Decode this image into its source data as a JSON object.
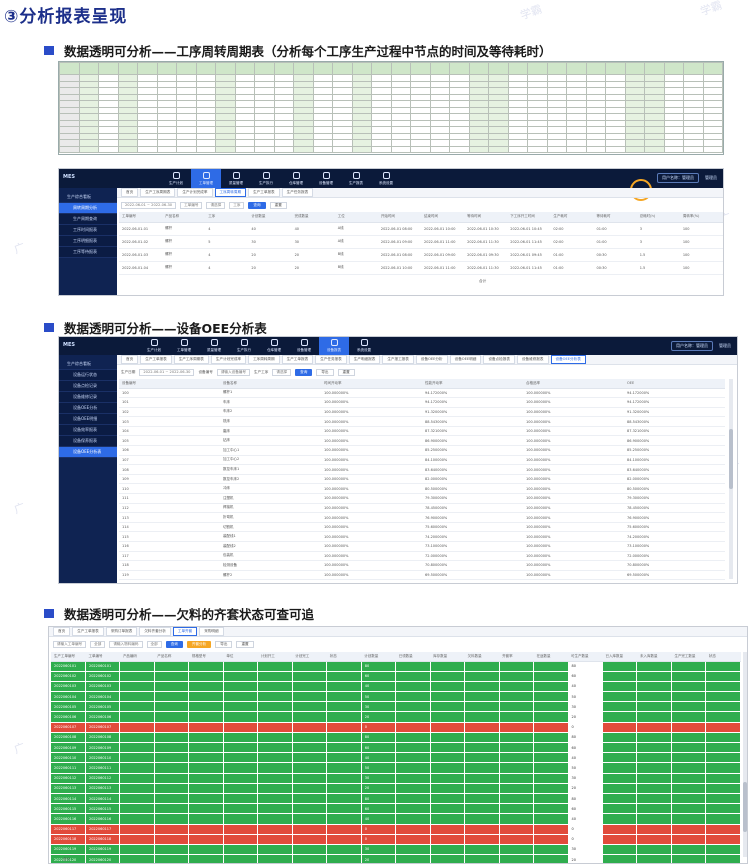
{
  "page": {
    "title": "③分析报表呈现"
  },
  "sections": {
    "s1": "数据透明可分析——工序周转周期表（分析每个工序生产过程中节点的时间及等待耗时）",
    "s2": "数据透明可分析——设备OEE分析表",
    "s3": "数据透明可分析——欠料的齐套状态可查可追"
  },
  "watermarks": [
    "学霸",
    "学霸",
    "广",
    "广",
    "广",
    "广",
    "广",
    "广",
    "广"
  ],
  "colors": {
    "title_blue": "#1c2f8a",
    "section_square": "#2a4cc8",
    "topbar": "#0b1a3a",
    "sidebar": "#0f2352",
    "accent": "#2e6be6",
    "kit_green": "#2fad4e",
    "kit_red": "#e14b3b",
    "highlight": "#f5a623"
  },
  "excel": {
    "rows": 13,
    "cols": 34
  },
  "app1": {
    "nav": [
      "生产计划",
      "工单管理",
      "质量管理",
      "生产执行",
      "仓库管理",
      "设备管理",
      "生产报表",
      "系统设置"
    ],
    "nav_icons": [
      "calendar-icon",
      "list-icon",
      "shield-icon",
      "play-icon",
      "box-icon",
      "gear-icon",
      "chart-icon",
      "settings-icon"
    ],
    "active_nav": 1,
    "sidebar": [
      "生产综合看板",
      "周转周期分析",
      "生产周期查询",
      "工序时间报表",
      "工序明细报表",
      "工序等待报表"
    ],
    "sidebar_active": 1,
    "tabs": [
      "首页",
      "生产工序周期表",
      "生产计划完成率",
      "工序周转周期",
      "生产工单报表",
      "生产任务报表"
    ],
    "active_tab": 3,
    "filter_labels": [
      "2022-06-01 ~ 2022-06-30",
      "工单编号",
      "请选择",
      "工序"
    ],
    "search_label": "查询",
    "reset_label": "重置",
    "columns": [
      "工单编号",
      "产品名称",
      "工序",
      "计划数量",
      "完成数量",
      "工位",
      "开始时间",
      "结束时间",
      "等待时间",
      "下工序开工时间",
      "生产耗时",
      "等待耗时",
      "总耗时(h)",
      "周转率(%)"
    ],
    "rows": [
      [
        "2022-06-01-01",
        "螺杆",
        "4",
        "40",
        "40",
        "A线",
        "2022-06-01 08:00",
        "2022-06-01 10:00",
        "2022-06-01 10:30",
        "2022-06-01 10:45",
        "02:00",
        "01:00",
        "3",
        "100"
      ],
      [
        "2022-06-01-02",
        "螺杆",
        "5",
        "30",
        "30",
        "A线",
        "2022-06-01 09:00",
        "2022-06-01 11:00",
        "2022-06-01 11:30",
        "2022-06-01 11:45",
        "02:00",
        "01:00",
        "3",
        "100"
      ],
      [
        "2022-06-01-03",
        "螺杆",
        "4",
        "20",
        "20",
        "B线",
        "2022-06-01 08:00",
        "2022-06-01 09:00",
        "2022-06-01 09:30",
        "2022-06-01 09:45",
        "01:00",
        "00:30",
        "1.5",
        "100"
      ],
      [
        "2022-06-01-04",
        "螺杆",
        "4",
        "20",
        "20",
        "B线",
        "2022-06-01 10:00",
        "2022-06-01 11:00",
        "2022-06-01 11:30",
        "2022-06-01 11:45",
        "01:00",
        "00:30",
        "1.5",
        "100"
      ]
    ],
    "total_label": "合计",
    "user": "用户名称：管理员",
    "avatar": "管理员"
  },
  "app2": {
    "nav": [
      "生产计划",
      "工单管理",
      "质量管理",
      "生产执行",
      "仓库管理",
      "设备管理",
      "设备报表",
      "系统设置"
    ],
    "nav_icons": [
      "calendar-icon",
      "list-icon",
      "shield-icon",
      "play-icon",
      "box-icon",
      "share-icon",
      "chart-icon",
      "settings-icon"
    ],
    "active_nav": 6,
    "sidebar": [
      "生产综合看板",
      "设备运行状态",
      "设备点检记录",
      "设备维修记录",
      "设备OEE分析",
      "设备OEE明细",
      "设备效率报表",
      "设备保养报表",
      "设备OEE分析表"
    ],
    "sidebar_active": 8,
    "tabs": [
      "首页",
      "生产工单报表",
      "生产工序周期表",
      "生产计划完成率",
      "工序周转周期",
      "生产工单报表",
      "生产任务报表",
      "生产明细报表",
      "生产报工报表",
      "设备OEE分析",
      "设备OEE明细",
      "设备点检报表",
      "设备维修报表",
      "设备OEE分析表"
    ],
    "active_tab": 13,
    "filter_labels": [
      "生产日期",
      "2022-06-01 ~ 2022-06-30",
      "设备编号",
      "请输入设备编号",
      "生产工序",
      "请选择"
    ],
    "search_label": "查询",
    "export_label": "导出",
    "reset_label": "重置",
    "columns": [
      "设备编号",
      "设备名称",
      "时间开动率",
      "性能开动率",
      "合格品率",
      "OEE"
    ],
    "rows": [
      [
        "100",
        "螺杆1",
        "100.000000%",
        "94.172000%",
        "100.000000%",
        "94.172000%"
      ],
      [
        "101",
        "车床",
        "100.000000%",
        "94.172000%",
        "100.000000%",
        "94.172000%"
      ],
      [
        "102",
        "车床2",
        "100.000000%",
        "91.320000%",
        "100.000000%",
        "91.320000%"
      ],
      [
        "103",
        "铣床",
        "100.000000%",
        "88.543000%",
        "100.000000%",
        "88.543000%"
      ],
      [
        "104",
        "磨床",
        "100.000000%",
        "87.321000%",
        "100.000000%",
        "87.321000%"
      ],
      [
        "105",
        "钻床",
        "100.000000%",
        "86.900000%",
        "100.000000%",
        "86.900000%"
      ],
      [
        "106",
        "加工中心1",
        "100.000000%",
        "85.250000%",
        "100.000000%",
        "85.250000%"
      ],
      [
        "107",
        "加工中心2",
        "100.000000%",
        "84.100000%",
        "100.000000%",
        "84.100000%"
      ],
      [
        "108",
        "数控车床1",
        "100.000000%",
        "83.640000%",
        "100.000000%",
        "83.640000%"
      ],
      [
        "109",
        "数控车床2",
        "100.000000%",
        "82.000000%",
        "100.000000%",
        "82.000000%"
      ],
      [
        "110",
        "冲床",
        "100.000000%",
        "80.500000%",
        "100.000000%",
        "80.500000%"
      ],
      [
        "111",
        "注塑机",
        "100.000000%",
        "79.300000%",
        "100.000000%",
        "79.300000%"
      ],
      [
        "112",
        "焊接机",
        "100.000000%",
        "78.450000%",
        "100.000000%",
        "78.450000%"
      ],
      [
        "113",
        "折弯机",
        "100.000000%",
        "76.900000%",
        "100.000000%",
        "76.900000%"
      ],
      [
        "114",
        "切割机",
        "100.000000%",
        "75.600000%",
        "100.000000%",
        "75.600000%"
      ],
      [
        "115",
        "装配线1",
        "100.000000%",
        "74.200000%",
        "100.000000%",
        "74.200000%"
      ],
      [
        "116",
        "装配线2",
        "100.000000%",
        "73.100000%",
        "100.000000%",
        "73.100000%"
      ],
      [
        "117",
        "包装机",
        "100.000000%",
        "72.000000%",
        "100.000000%",
        "72.000000%"
      ],
      [
        "118",
        "检测设备",
        "100.000000%",
        "70.800000%",
        "100.000000%",
        "70.800000%"
      ],
      [
        "119",
        "螺杆2",
        "100.000000%",
        "69.500000%",
        "100.000000%",
        "69.500000%"
      ]
    ],
    "user": "用户名称：管理员",
    "avatar": "管理员"
  },
  "app3": {
    "tabs": [
      "首页",
      "生产工单报表",
      "采购订单报表",
      "欠料齐套分析",
      "工单齐套",
      "采购明细"
    ],
    "active_tab": 4,
    "filter_labels": [
      "请输入工单编号",
      "全部",
      "请输入物料编码",
      "全部"
    ],
    "search_label": "查询",
    "analyze_label": "齐套分析",
    "export_label": "导出",
    "reset_label": "重置",
    "columns": [
      "生产工单编号",
      "工单编号",
      "产品编码",
      "产品名称",
      "规格型号",
      "单位",
      "计划开工",
      "计划完工",
      "状态",
      "计划数量",
      "已领数量",
      "库存数量",
      "欠料数量",
      "齐套率",
      "在途数量",
      "可生产数量",
      "已入库数量",
      "未入库数量",
      "生产完工数量",
      "状态"
    ],
    "rows": [
      {
        "s": "green",
        "id": "2022060101",
        "v": "80"
      },
      {
        "s": "green",
        "id": "2022060102",
        "v": "60"
      },
      {
        "s": "green",
        "id": "2022060103",
        "v": "40"
      },
      {
        "s": "green",
        "id": "2022060104",
        "v": "50"
      },
      {
        "s": "green",
        "id": "2022060105",
        "v": "30"
      },
      {
        "s": "green",
        "id": "2022060106",
        "v": "20"
      },
      {
        "s": "red",
        "id": "2022060107",
        "v": "0"
      },
      {
        "s": "green",
        "id": "2022060108",
        "v": "80"
      },
      {
        "s": "green",
        "id": "2022060109",
        "v": "60"
      },
      {
        "s": "green",
        "id": "2022060110",
        "v": "40"
      },
      {
        "s": "green",
        "id": "2022060111",
        "v": "50"
      },
      {
        "s": "green",
        "id": "2022060112",
        "v": "30"
      },
      {
        "s": "green",
        "id": "2022060113",
        "v": "20"
      },
      {
        "s": "green",
        "id": "2022060114",
        "v": "80"
      },
      {
        "s": "green",
        "id": "2022060115",
        "v": "60"
      },
      {
        "s": "green",
        "id": "2022060116",
        "v": "40"
      },
      {
        "s": "red",
        "id": "2022060117",
        "v": "0"
      },
      {
        "s": "red",
        "id": "2022060118",
        "v": "0"
      },
      {
        "s": "green",
        "id": "2022060119",
        "v": "30"
      },
      {
        "s": "green",
        "id": "2022060120",
        "v": "20"
      }
    ],
    "total_label": "合计"
  }
}
